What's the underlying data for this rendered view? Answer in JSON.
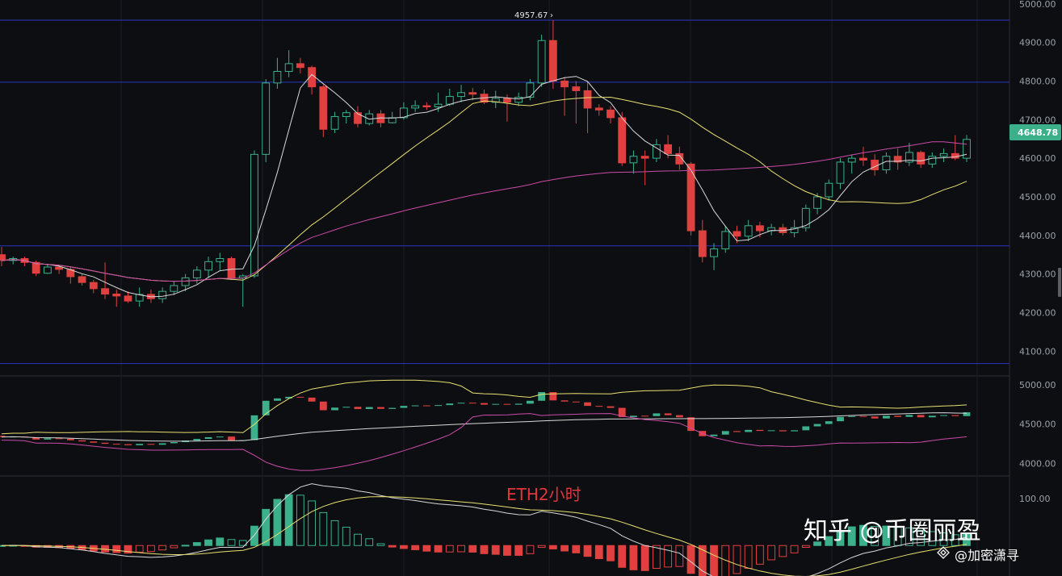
{
  "chart_data": {
    "type": "candlestick",
    "timeframe_label": "ETH2小时",
    "peak_label": "4957.67",
    "last_price_label": "4648.78",
    "colors": {
      "background": "#0d0e12",
      "up": "#3bb08a",
      "down": "#e0403f",
      "ma_fast": "#d8d8d8",
      "ma_mid": "#e8e070",
      "ma_slow": "#cc4aa8",
      "hline": "#2a36c0",
      "grid": "#1c1e24",
      "axis_text": "#9aa0a8",
      "badge": "#3bb08a"
    },
    "main_panel": {
      "y_ticks": [
        "5000.00",
        "4900.00",
        "4800.00",
        "4700.00",
        "4600.00",
        "4500.00",
        "4400.00",
        "4300.00",
        "4200.00",
        "4100.00"
      ],
      "ylim": [
        4040,
        5010
      ],
      "horizontal_levels": [
        4957.67,
        4797,
        4373,
        4068
      ],
      "candles": [
        [
          4350,
          4370,
          4320,
          4335
        ],
        [
          4335,
          4345,
          4325,
          4340
        ],
        [
          4340,
          4345,
          4320,
          4330
        ],
        [
          4330,
          4335,
          4295,
          4302
        ],
        [
          4302,
          4325,
          4300,
          4318
        ],
        [
          4318,
          4322,
          4300,
          4312
        ],
        [
          4312,
          4318,
          4275,
          4293
        ],
        [
          4293,
          4300,
          4270,
          4278
        ],
        [
          4278,
          4285,
          4250,
          4262
        ],
        [
          4262,
          4330,
          4235,
          4248
        ],
        [
          4248,
          4260,
          4215,
          4243
        ],
        [
          4243,
          4255,
          4225,
          4230
        ],
        [
          4230,
          4265,
          4215,
          4247
        ],
        [
          4247,
          4260,
          4225,
          4236
        ],
        [
          4236,
          4265,
          4225,
          4255
        ],
        [
          4255,
          4280,
          4245,
          4270
        ],
        [
          4270,
          4300,
          4255,
          4290
        ],
        [
          4290,
          4320,
          4275,
          4310
        ],
        [
          4310,
          4345,
          4290,
          4332
        ],
        [
          4332,
          4355,
          4310,
          4340
        ],
        [
          4340,
          4345,
          4285,
          4290
        ],
        [
          4290,
          4300,
          4215,
          4295
        ],
        [
          4295,
          4620,
          4290,
          4610
        ],
        [
          4610,
          4805,
          4590,
          4795
        ],
        [
          4795,
          4860,
          4780,
          4825
        ],
        [
          4825,
          4880,
          4810,
          4845
        ],
        [
          4845,
          4860,
          4820,
          4835
        ],
        [
          4835,
          4840,
          4765,
          4785
        ],
        [
          4785,
          4790,
          4655,
          4675
        ],
        [
          4675,
          4720,
          4665,
          4708
        ],
        [
          4708,
          4725,
          4690,
          4718
        ],
        [
          4718,
          4735,
          4680,
          4690
        ],
        [
          4690,
          4725,
          4685,
          4715
        ],
        [
          4715,
          4725,
          4680,
          4692
        ],
        [
          4692,
          4720,
          4690,
          4705
        ],
        [
          4705,
          4745,
          4700,
          4730
        ],
        [
          4730,
          4750,
          4720,
          4736
        ],
        [
          4736,
          4745,
          4725,
          4733
        ],
        [
          4733,
          4770,
          4720,
          4740
        ],
        [
          4740,
          4780,
          4735,
          4760
        ],
        [
          4760,
          4790,
          4745,
          4770
        ],
        [
          4770,
          4782,
          4750,
          4766
        ],
        [
          4766,
          4778,
          4740,
          4745
        ],
        [
          4745,
          4775,
          4730,
          4755
        ],
        [
          4755,
          4765,
          4695,
          4745
        ],
        [
          4745,
          4770,
          4735,
          4758
        ],
        [
          4758,
          4805,
          4750,
          4795
        ],
        [
          4795,
          4920,
          4785,
          4905
        ],
        [
          4905,
          4957.67,
          4780,
          4800
        ],
        [
          4800,
          4810,
          4710,
          4785
        ],
        [
          4785,
          4800,
          4690,
          4775
        ],
        [
          4775,
          4800,
          4665,
          4730
        ],
        [
          4730,
          4740,
          4710,
          4725
        ],
        [
          4725,
          4735,
          4690,
          4705
        ],
        [
          4705,
          4720,
          4580,
          4588
        ],
        [
          4588,
          4620,
          4560,
          4605
        ],
        [
          4605,
          4620,
          4530,
          4600
        ],
        [
          4600,
          4650,
          4590,
          4635
        ],
        [
          4635,
          4660,
          4600,
          4612
        ],
        [
          4612,
          4630,
          4570,
          4585
        ],
        [
          4585,
          4590,
          4400,
          4412
        ],
        [
          4412,
          4440,
          4330,
          4345
        ],
        [
          4345,
          4380,
          4310,
          4365
        ],
        [
          4365,
          4425,
          4355,
          4410
        ],
        [
          4410,
          4425,
          4380,
          4398
        ],
        [
          4398,
          4440,
          4385,
          4425
        ],
        [
          4425,
          4435,
          4395,
          4412
        ],
        [
          4412,
          4430,
          4400,
          4420
        ],
        [
          4420,
          4430,
          4400,
          4407
        ],
        [
          4407,
          4440,
          4395,
          4420
        ],
        [
          4420,
          4480,
          4410,
          4470
        ],
        [
          4470,
          4510,
          4455,
          4500
        ],
        [
          4500,
          4545,
          4490,
          4535
        ],
        [
          4535,
          4600,
          4520,
          4590
        ],
        [
          4590,
          4610,
          4560,
          4600
        ],
        [
          4600,
          4630,
          4580,
          4595
        ],
        [
          4595,
          4610,
          4555,
          4570
        ],
        [
          4570,
          4615,
          4560,
          4605
        ],
        [
          4605,
          4625,
          4570,
          4590
        ],
        [
          4590,
          4640,
          4580,
          4615
        ],
        [
          4615,
          4620,
          4575,
          4585
        ],
        [
          4585,
          4615,
          4575,
          4605
        ],
        [
          4605,
          4625,
          4590,
          4612
        ],
        [
          4612,
          4660,
          4595,
          4600
        ],
        [
          4600,
          4660,
          4590,
          4648.78
        ]
      ]
    },
    "lower_panel": {
      "y_ticks": [
        "5000.00",
        "4500.00",
        "4000.00"
      ],
      "ylim": [
        3860,
        5090
      ]
    },
    "macd_panel": {
      "y_ticks": [
        "100.00"
      ],
      "ylim": [
        -65,
        145
      ]
    }
  },
  "watermark": {
    "main": "知乎 @币圈丽盈",
    "sub": "@加密潇寻"
  }
}
